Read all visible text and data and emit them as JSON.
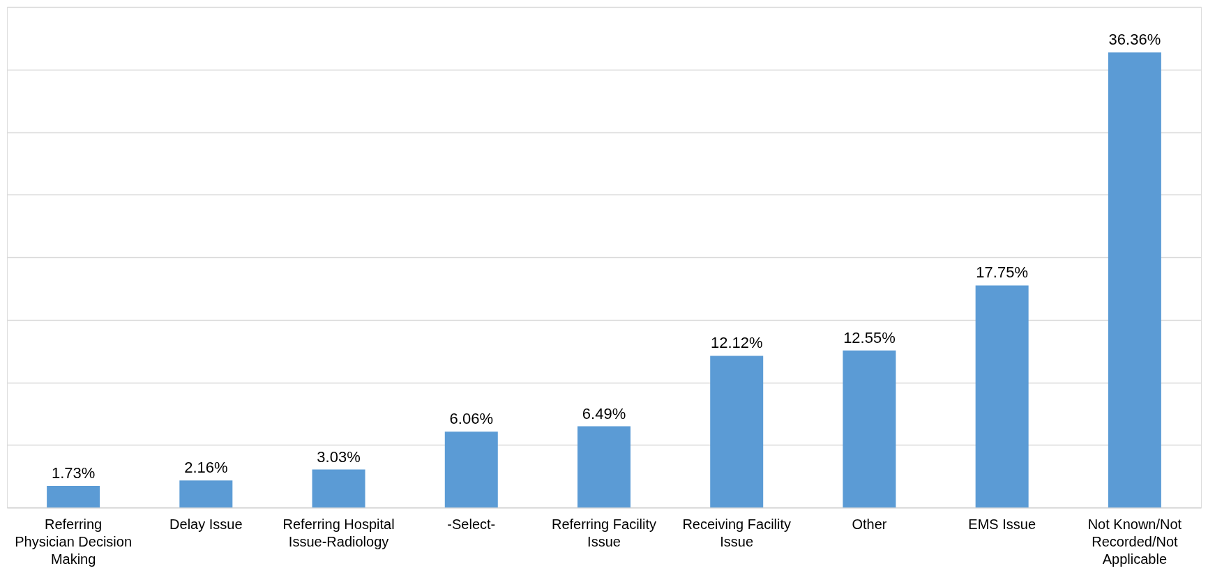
{
  "chart_data": {
    "type": "bar",
    "categories": [
      "Referring Physician Decision Making",
      "Delay Issue",
      "Referring Hospital Issue-Radiology",
      "-Select-",
      "Referring Facility Issue",
      "Receiving Facility Issue",
      "Other",
      "EMS Issue",
      "Not Known/Not Recorded/Not Applicable"
    ],
    "values": [
      1.73,
      2.16,
      3.03,
      6.06,
      6.49,
      12.12,
      12.55,
      17.75,
      36.36
    ],
    "value_labels": [
      "1.73%",
      "2.16%",
      "3.03%",
      "6.06%",
      "6.49%",
      "12.12%",
      "12.55%",
      "17.75%",
      "36.36%"
    ],
    "color": "#5b9bd5",
    "ylim": [
      0,
      40
    ],
    "yticks": [
      {
        "value": 0,
        "label": null
      },
      {
        "value": 5,
        "label": null
      },
      {
        "value": 10,
        "label": null
      },
      {
        "value": 15,
        "label": null
      },
      {
        "value": 20,
        "label": null
      },
      {
        "value": 25,
        "label": null
      },
      {
        "value": 30,
        "label": null
      },
      {
        "value": 35,
        "label": null
      },
      {
        "value": 40,
        "label": null
      }
    ],
    "grid": "y",
    "tick_labels": "x"
  }
}
